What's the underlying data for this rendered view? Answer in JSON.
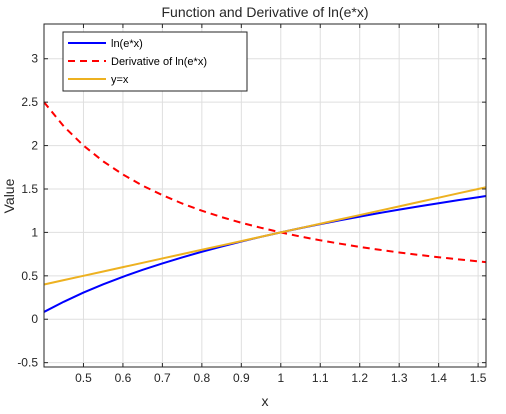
{
  "chart_data": {
    "type": "line",
    "title": "Function and Derivative of ln(e*x)",
    "xlabel": "x",
    "ylabel": "Value",
    "xlim": [
      0.4,
      1.52
    ],
    "ylim": [
      -0.55,
      3.4
    ],
    "xticks": [
      0.5,
      0.6,
      0.7,
      0.8,
      0.9,
      1,
      1.1,
      1.2,
      1.3,
      1.4,
      1.5
    ],
    "xtick_labels": [
      "0.5",
      "0.6",
      "0.7",
      "0.8",
      "0.9",
      "1",
      "1.1",
      "1.2",
      "1.3",
      "1.4",
      "1.5"
    ],
    "yticks": [
      -0.5,
      0,
      0.5,
      1,
      1.5,
      2,
      2.5,
      3
    ],
    "ytick_labels": [
      "-0.5",
      "0",
      "0.5",
      "1",
      "1.5",
      "2",
      "2.5",
      "3"
    ],
    "grid": true,
    "legend_position": "top-left",
    "x": [
      0.4,
      0.45,
      0.5,
      0.55,
      0.6,
      0.65,
      0.7,
      0.75,
      0.8,
      0.85,
      0.9,
      0.95,
      1.0,
      1.05,
      1.1,
      1.15,
      1.2,
      1.25,
      1.3,
      1.35,
      1.4,
      1.45,
      1.5,
      1.52
    ],
    "series": [
      {
        "name": "ln(e*x)",
        "color": "#0000ff",
        "style": "solid",
        "values": [
          0.084,
          0.201,
          0.307,
          0.402,
          0.489,
          0.569,
          0.643,
          0.712,
          0.777,
          0.837,
          0.895,
          0.949,
          1.0,
          1.049,
          1.095,
          1.14,
          1.182,
          1.223,
          1.262,
          1.3,
          1.336,
          1.372,
          1.405,
          1.419
        ]
      },
      {
        "name": "Derivative of ln(e*x)",
        "color": "#ff0000",
        "style": "dashed",
        "values": [
          2.5,
          2.222,
          2.0,
          1.818,
          1.667,
          1.538,
          1.429,
          1.333,
          1.25,
          1.176,
          1.111,
          1.053,
          1.0,
          0.952,
          0.909,
          0.87,
          0.833,
          0.8,
          0.769,
          0.741,
          0.714,
          0.69,
          0.667,
          0.658
        ]
      },
      {
        "name": "y=x",
        "color": "#edb120",
        "style": "solid",
        "values": [
          0.4,
          0.45,
          0.5,
          0.55,
          0.6,
          0.65,
          0.7,
          0.75,
          0.8,
          0.85,
          0.9,
          0.95,
          1.0,
          1.05,
          1.1,
          1.15,
          1.2,
          1.25,
          1.3,
          1.35,
          1.4,
          1.45,
          1.5,
          1.52
        ]
      }
    ]
  }
}
